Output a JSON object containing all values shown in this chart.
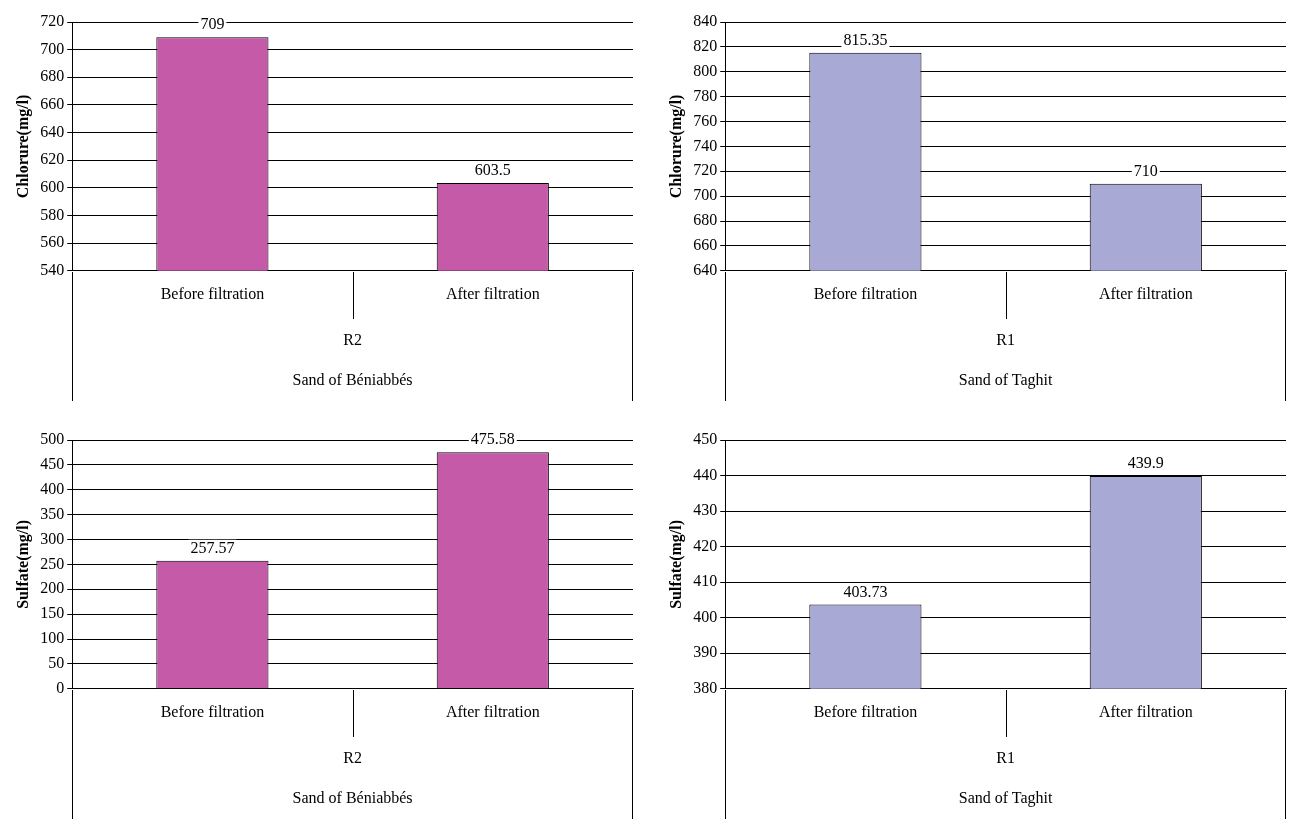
{
  "chart_data": [
    {
      "type": "bar",
      "categories": [
        "Before filtration",
        "After filtration"
      ],
      "values": [
        709,
        603.5
      ],
      "color": "#c45aa8",
      "ylabel": "Chlorure(mg/l)",
      "xlabel": "Sand of Béniabbés",
      "annotations": [
        "R2"
      ],
      "ylim": [
        540,
        720
      ],
      "yticks": [
        540,
        560,
        580,
        600,
        620,
        640,
        660,
        680,
        700,
        720
      ],
      "grid": "y",
      "data_labels": true,
      "legend": false
    },
    {
      "type": "bar",
      "categories": [
        "Before filtration",
        "After filtration"
      ],
      "values": [
        815.35,
        710
      ],
      "color": "#a9a9d6",
      "ylabel": "Chlorure(mg/l)",
      "xlabel": "Sand of Taghit",
      "annotations": [
        "R1"
      ],
      "ylim": [
        640,
        840
      ],
      "yticks": [
        640,
        660,
        680,
        700,
        720,
        740,
        760,
        780,
        800,
        820,
        840
      ],
      "grid": "y",
      "data_labels": true,
      "legend": false
    },
    {
      "type": "bar",
      "categories": [
        "Before filtration",
        "After filtration"
      ],
      "values": [
        257.57,
        475.58
      ],
      "color": "#c45aa8",
      "ylabel": "Sulfate(mg/l)",
      "xlabel": "Sand of Béniabbés",
      "annotations": [
        "R2"
      ],
      "ylim": [
        0,
        500
      ],
      "yticks": [
        0,
        50,
        100,
        150,
        200,
        250,
        300,
        350,
        400,
        450,
        500
      ],
      "grid": "y",
      "data_labels": true,
      "legend": false
    },
    {
      "type": "bar",
      "categories": [
        "Before filtration",
        "After filtration"
      ],
      "values": [
        403.73,
        439.9
      ],
      "color": "#a9a9d6",
      "ylabel": "Sulfate(mg/l)",
      "xlabel": "Sand of Taghit",
      "annotations": [
        "R1"
      ],
      "ylim": [
        380,
        450
      ],
      "yticks": [
        380,
        390,
        400,
        410,
        420,
        430,
        440,
        450
      ],
      "grid": "y",
      "data_labels": true,
      "legend": false
    }
  ]
}
